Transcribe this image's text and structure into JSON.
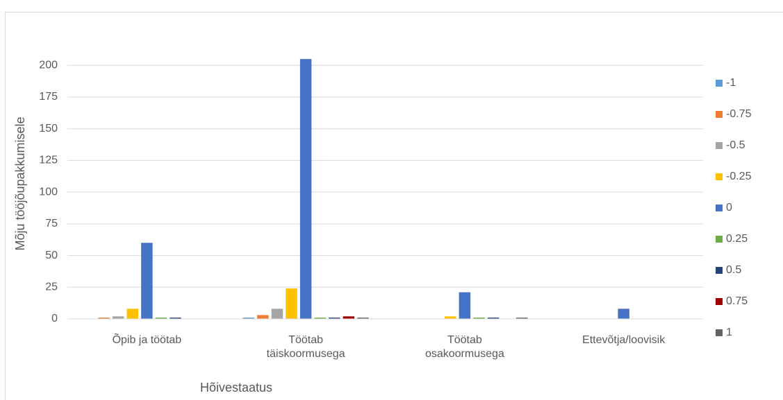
{
  "chart_data": {
    "type": "bar",
    "x_label": "Hõivestaatus",
    "y_label": "Mõju tööjõupakkumisele",
    "categories": [
      "Õpib ja töötab",
      "Töötab täiskoormusega",
      "Töötab osakoormusega",
      "Ettevõtja/loovisik"
    ],
    "series": [
      {
        "name": "-1",
        "color": "#5b9bd5",
        "values": [
          0,
          1,
          0,
          0
        ]
      },
      {
        "name": "-0.75",
        "color": "#ed7d31",
        "values": [
          1,
          3,
          0,
          0
        ]
      },
      {
        "name": "-0.5",
        "color": "#a5a5a5",
        "values": [
          2,
          8,
          0,
          0
        ]
      },
      {
        "name": "-0.25",
        "color": "#ffc000",
        "values": [
          8,
          24,
          2,
          0
        ]
      },
      {
        "name": "0",
        "color": "#4472c4",
        "values": [
          60,
          205,
          21,
          8
        ]
      },
      {
        "name": "0.25",
        "color": "#70ad47",
        "values": [
          1,
          1,
          1,
          0
        ]
      },
      {
        "name": "0.5",
        "color": "#264478",
        "values": [
          1,
          1,
          1,
          0
        ]
      },
      {
        "name": "0.75",
        "color": "#9e0000",
        "values": [
          0,
          2,
          0,
          0
        ]
      },
      {
        "name": "1",
        "color": "#636363",
        "values": [
          0,
          1,
          1,
          0
        ]
      }
    ],
    "ylim": [
      0,
      210
    ],
    "yticks": [
      0,
      25,
      50,
      75,
      100,
      125,
      150,
      175,
      200
    ],
    "grid": true,
    "legend": "right"
  }
}
